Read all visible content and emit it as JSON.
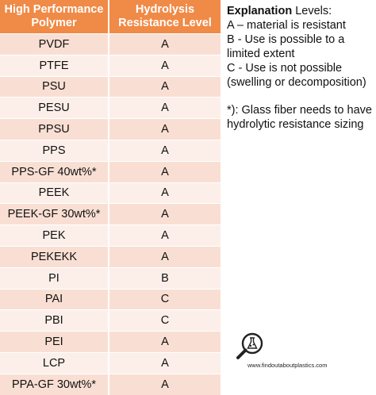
{
  "table": {
    "headers": {
      "col1": "High Performance Polymer",
      "col2": "Hydrolysis Resistance Level"
    },
    "rows": [
      {
        "polymer": "PVDF",
        "level": "A"
      },
      {
        "polymer": "PTFE",
        "level": "A"
      },
      {
        "polymer": "PSU",
        "level": "A"
      },
      {
        "polymer": "PESU",
        "level": "A"
      },
      {
        "polymer": "PPSU",
        "level": "A"
      },
      {
        "polymer": "PPS",
        "level": "A"
      },
      {
        "polymer": "PPS-GF 40wt%*",
        "level": "A"
      },
      {
        "polymer": "PEEK",
        "level": "A"
      },
      {
        "polymer": "PEEK-GF 30wt%*",
        "level": "A"
      },
      {
        "polymer": "PEK",
        "level": "A"
      },
      {
        "polymer": "PEKEKK",
        "level": "A"
      },
      {
        "polymer": "PI",
        "level": "B"
      },
      {
        "polymer": "PAI",
        "level": "C"
      },
      {
        "polymer": "PBI",
        "level": "C"
      },
      {
        "polymer": "PEI",
        "level": "A"
      },
      {
        "polymer": "LCP",
        "level": "A"
      },
      {
        "polymer": "PPA-GF 30wt%*",
        "level": "A"
      }
    ]
  },
  "explanation": {
    "title_bold": "Explanation",
    "title_rest": " Levels:",
    "level_a": "A – material is resistant",
    "level_b": "B - Use is possible to a limited extent",
    "level_c": "C - Use is not possible (swelling or decomposition)",
    "footnote": "*): Glass fiber needs to have hydrolytic resistance sizing"
  },
  "logo": {
    "url_text": "www.findoutaboutplastics.com",
    "icon": "magnifier-flask-icon"
  },
  "colors": {
    "header": "#f08a47",
    "row_odd": "#f9dfd3",
    "row_even": "#fcefe9"
  }
}
